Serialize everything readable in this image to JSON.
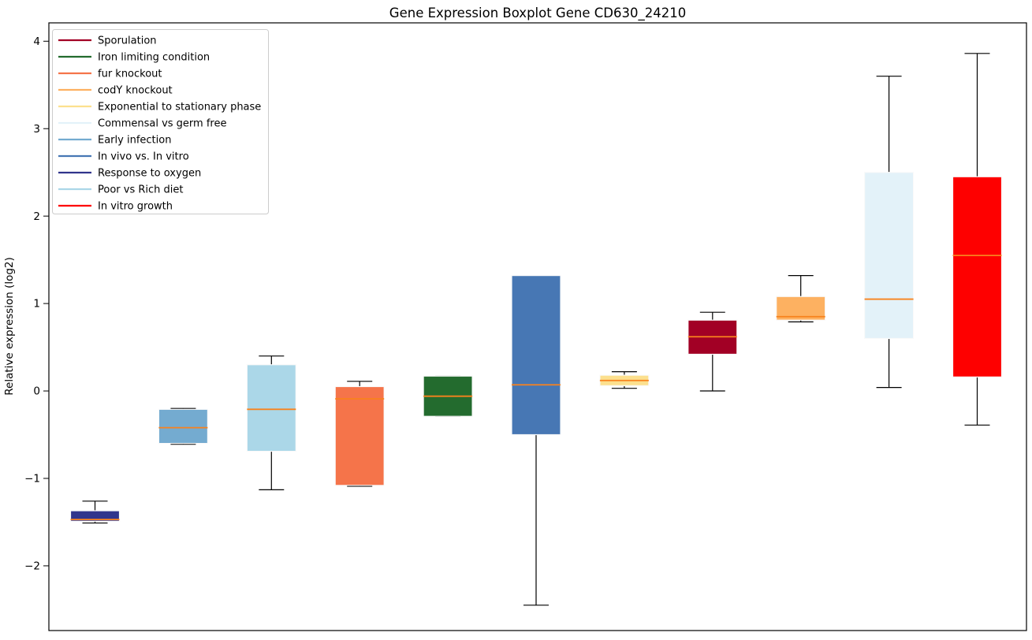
{
  "chart_data": {
    "type": "boxplot",
    "title": "Gene Expression Boxplot Gene CD630_24210",
    "ylabel": "Relative expression (log2)",
    "xlabel": "",
    "ylim": [
      -2.74,
      4.21
    ],
    "yticks": [
      -2,
      -1,
      0,
      1,
      2,
      3,
      4
    ],
    "grid": false,
    "legend_position": "upper-left",
    "median_color": "#f8821d",
    "whisker_color": "#000000",
    "boxes": [
      {
        "label": "Response to oxygen",
        "color": "#31358c",
        "whislo": -1.51,
        "q1": -1.49,
        "med": -1.47,
        "q3": -1.37,
        "whishi": -1.26
      },
      {
        "label": "Early infection",
        "color": "#74abd0",
        "whislo": -0.61,
        "q1": -0.6,
        "med": -0.42,
        "q3": -0.21,
        "whishi": -0.2
      },
      {
        "label": "Poor vs Rich diet",
        "color": "#abd7e8",
        "whislo": -1.13,
        "q1": -0.69,
        "med": -0.21,
        "q3": 0.3,
        "whishi": 0.4
      },
      {
        "label": "fur knockout",
        "color": "#f5744a",
        "whislo": -1.09,
        "q1": -1.08,
        "med": -0.09,
        "q3": 0.05,
        "whishi": 0.11
      },
      {
        "label": "Iron limiting condition",
        "color": "#236b2e",
        "whislo": -0.29,
        "q1": -0.29,
        "med": -0.06,
        "q3": 0.17,
        "whishi": 0.17
      },
      {
        "label": "In vivo vs. In vitro",
        "color": "#4777b4",
        "whislo": -2.45,
        "q1": -0.5,
        "med": 0.07,
        "q3": 1.32,
        "whishi": 1.32
      },
      {
        "label": "Exponential to stationary phase",
        "color": "#fce08e",
        "whislo": 0.03,
        "q1": 0.06,
        "med": 0.12,
        "q3": 0.18,
        "whishi": 0.22
      },
      {
        "label": "Sporulation",
        "color": "#a20025",
        "whislo": 0.0,
        "q1": 0.42,
        "med": 0.62,
        "q3": 0.81,
        "whishi": 0.9
      },
      {
        "label": "codY knockout",
        "color": "#fdb161",
        "whislo": 0.79,
        "q1": 0.81,
        "med": 0.85,
        "q3": 1.08,
        "whishi": 1.32
      },
      {
        "label": "Commensal vs germ free",
        "color": "#e3f2f9",
        "whislo": 0.04,
        "q1": 0.6,
        "med": 1.05,
        "q3": 2.5,
        "whishi": 3.6
      },
      {
        "label": "In vitro growth",
        "color": "#fe0000",
        "whislo": -0.39,
        "q1": 0.16,
        "med": 1.55,
        "q3": 2.45,
        "whishi": 3.86
      }
    ],
    "legend": [
      {
        "label": "Sporulation",
        "color": "#a20025"
      },
      {
        "label": "Iron limiting condition",
        "color": "#236b2e"
      },
      {
        "label": "fur knockout",
        "color": "#f5744a"
      },
      {
        "label": "codY knockout",
        "color": "#fdb161"
      },
      {
        "label": "Exponential to stationary phase",
        "color": "#fce08e"
      },
      {
        "label": "Commensal vs germ free",
        "color": "#e3f2f9"
      },
      {
        "label": "Early infection",
        "color": "#74abd0"
      },
      {
        "label": "In vivo vs. In vitro",
        "color": "#4777b4"
      },
      {
        "label": "Response to oxygen",
        "color": "#31358c"
      },
      {
        "label": "Poor vs Rich diet",
        "color": "#abd7e8"
      },
      {
        "label": "In vitro growth",
        "color": "#fe0000"
      }
    ]
  }
}
